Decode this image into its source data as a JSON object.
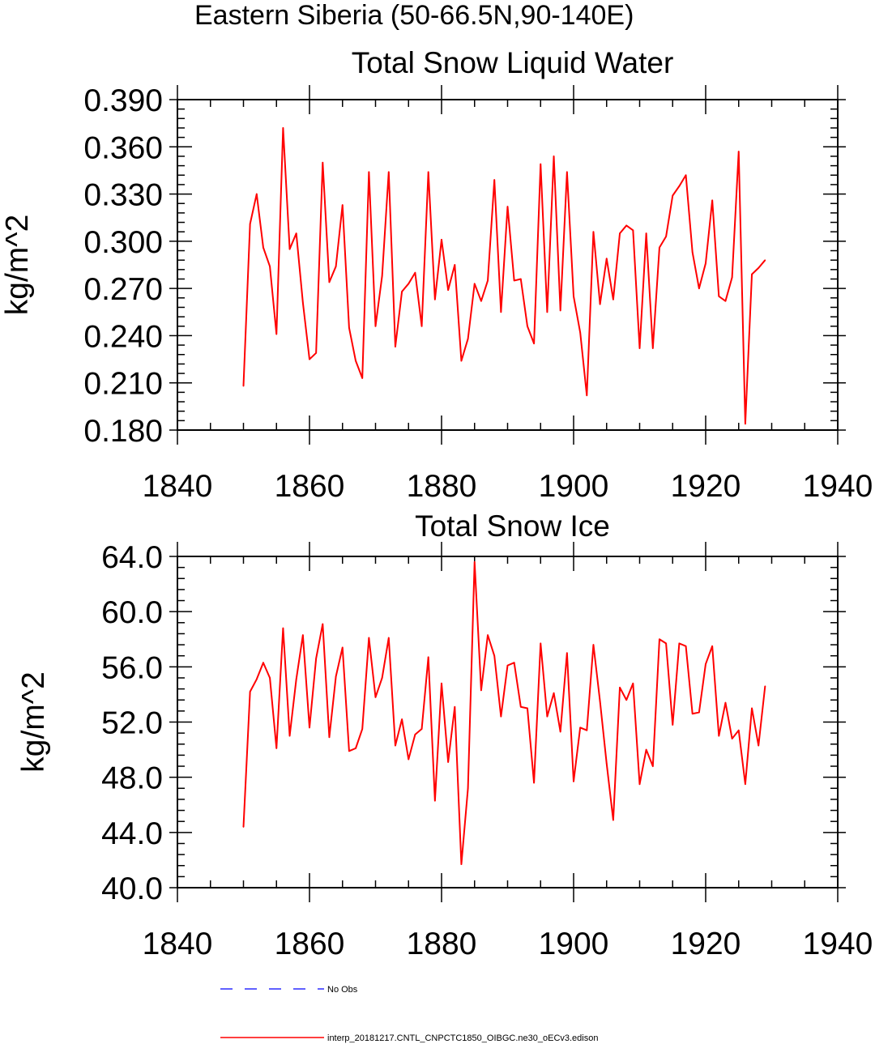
{
  "figure": {
    "title": "Eastern Siberia (50-66.5N,90-140E)"
  },
  "legend": [
    {
      "label": "No Obs",
      "color": "#0000ff",
      "dash": "dashed"
    },
    {
      "label": "interp_20181217.CNTL_CNPCTC1850_OIBGC.ne30_oECv3.edison",
      "color": "#ff0000",
      "dash": "solid"
    }
  ],
  "chart_data": [
    {
      "type": "line",
      "title": "Total Snow Liquid Water",
      "xlabel": "",
      "ylabel": "kg/m^2",
      "xlim": [
        1840,
        1940
      ],
      "ylim": [
        0.18,
        0.39
      ],
      "xticks": [
        "1840",
        "1860",
        "1880",
        "1900",
        "1920",
        "1940"
      ],
      "yticks": [
        "0.180",
        "0.210",
        "0.240",
        "0.270",
        "0.300",
        "0.330",
        "0.360",
        "0.390"
      ],
      "grid": false,
      "x_start": 1850,
      "series": [
        {
          "color": "#ff0000",
          "values": [
            0.208,
            0.311,
            0.33,
            0.296,
            0.284,
            0.241,
            0.372,
            0.295,
            0.305,
            0.261,
            0.225,
            0.229,
            0.35,
            0.274,
            0.284,
            0.323,
            0.245,
            0.224,
            0.213,
            0.344,
            0.246,
            0.278,
            0.344,
            0.233,
            0.268,
            0.273,
            0.28,
            0.246,
            0.344,
            0.263,
            0.301,
            0.269,
            0.285,
            0.224,
            0.238,
            0.273,
            0.262,
            0.275,
            0.339,
            0.255,
            0.322,
            0.275,
            0.276,
            0.246,
            0.235,
            0.349,
            0.255,
            0.354,
            0.256,
            0.344,
            0.265,
            0.242,
            0.202,
            0.306,
            0.26,
            0.289,
            0.263,
            0.305,
            0.31,
            0.307,
            0.232,
            0.305,
            0.232,
            0.296,
            0.303,
            0.329,
            0.335,
            0.342,
            0.293,
            0.27,
            0.286,
            0.326,
            0.265,
            0.262,
            0.277,
            0.357,
            0.184,
            0.279,
            0.283,
            0.288
          ]
        }
      ]
    },
    {
      "type": "line",
      "title": "Total Snow Ice",
      "xlabel": "",
      "ylabel": "kg/m^2",
      "xlim": [
        1840,
        1940
      ],
      "ylim": [
        40.0,
        64.0
      ],
      "xticks": [
        "1840",
        "1860",
        "1880",
        "1900",
        "1920",
        "1940"
      ],
      "yticks": [
        "40.0",
        "44.0",
        "48.0",
        "52.0",
        "56.0",
        "60.0",
        "64.0"
      ],
      "grid": false,
      "x_start": 1850,
      "series": [
        {
          "color": "#ff0000",
          "values": [
            44.4,
            54.2,
            55.1,
            56.3,
            55.2,
            50.1,
            58.8,
            51.0,
            55.1,
            58.3,
            51.6,
            56.6,
            59.1,
            50.9,
            55.3,
            57.4,
            49.9,
            50.1,
            51.5,
            58.1,
            53.8,
            55.2,
            58.1,
            50.3,
            52.2,
            49.3,
            51.1,
            51.5,
            56.7,
            46.3,
            54.8,
            49.1,
            53.1,
            41.7,
            47.2,
            63.6,
            54.3,
            58.3,
            56.8,
            52.4,
            56.1,
            56.3,
            53.1,
            53.0,
            47.6,
            57.7,
            52.4,
            54.1,
            51.3,
            57.0,
            47.7,
            51.6,
            51.4,
            57.6,
            53.5,
            49.0,
            44.9,
            54.5,
            53.6,
            54.8,
            47.5,
            50.0,
            48.8,
            58.0,
            57.7,
            51.8,
            57.7,
            57.5,
            52.6,
            52.7,
            56.2,
            57.5,
            51.0,
            53.4,
            50.8,
            51.4,
            47.5,
            53.0,
            50.3,
            54.6
          ]
        }
      ]
    }
  ]
}
